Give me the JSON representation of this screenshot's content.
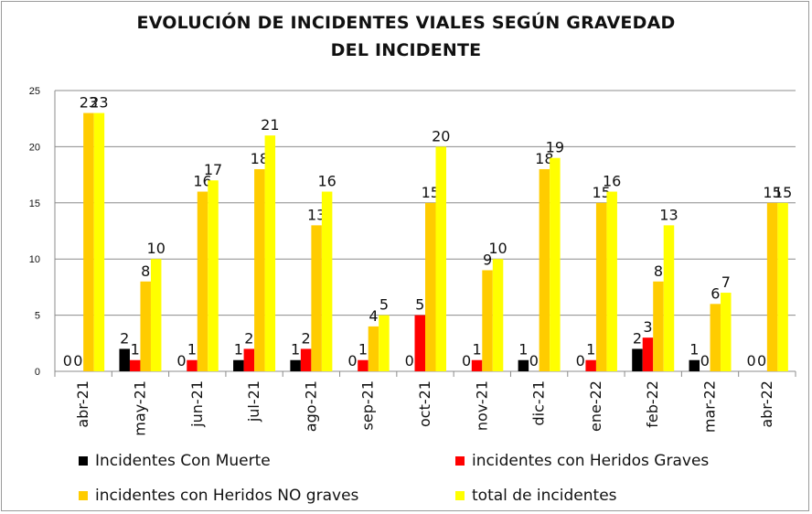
{
  "chart_data": {
    "type": "bar",
    "title_line1": "EVOLUCIÓN DE INCIDENTES VIALES SEGÚN GRAVEDAD",
    "title_line2": "DEL INCIDENTE",
    "categories": [
      "abr-21",
      "may-21",
      "jun-21",
      "jul-21",
      "ago-21",
      "sep-21",
      "oct-21",
      "nov-21",
      "dic-21",
      "ene-22",
      "feb-22",
      "mar-22",
      "abr-22"
    ],
    "series": [
      {
        "name": "Incidentes Con Muerte",
        "color": "#000000",
        "values": [
          0,
          2,
          0,
          1,
          1,
          0,
          0,
          0,
          1,
          0,
          2,
          1,
          0
        ]
      },
      {
        "name": "incidentes con Heridos Graves",
        "color": "#ff0000",
        "values": [
          0,
          1,
          1,
          2,
          2,
          1,
          5,
          1,
          0,
          1,
          3,
          0,
          0
        ]
      },
      {
        "name": "incidentes con Heridos NO graves",
        "color": "#ffcc00",
        "values": [
          23,
          8,
          16,
          18,
          13,
          4,
          15,
          9,
          18,
          15,
          8,
          6,
          15
        ]
      },
      {
        "name": "total de incidentes",
        "color": "#ffff00",
        "values": [
          23,
          10,
          17,
          21,
          16,
          5,
          20,
          10,
          19,
          16,
          13,
          7,
          15
        ]
      }
    ],
    "y_ticks": [
      "0",
      "5",
      "10",
      "15",
      "20",
      "25"
    ],
    "ylim": [
      0,
      25
    ],
    "grid": true,
    "legend_position": "bottom"
  }
}
